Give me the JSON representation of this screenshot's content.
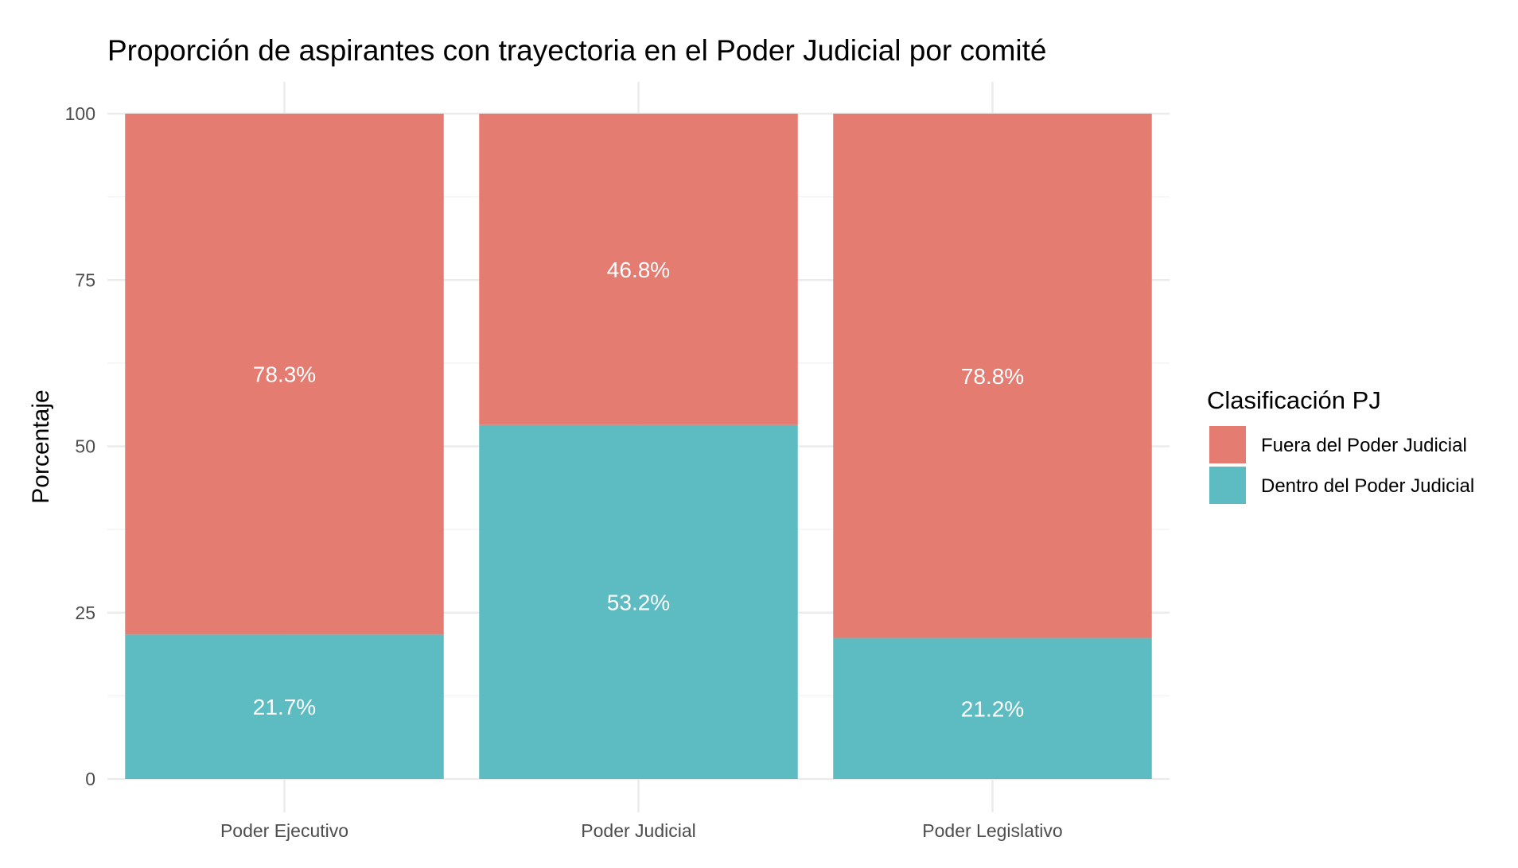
{
  "chart_data": {
    "type": "bar",
    "stacked": true,
    "title": "Proporción de aspirantes con trayectoria en el Poder Judicial por comité",
    "xlabel": "",
    "ylabel": "Porcentaje",
    "ylim": [
      0,
      100
    ],
    "yticks": [
      0,
      25,
      50,
      75,
      100
    ],
    "grid": true,
    "categories": [
      "Poder Ejecutivo",
      "Poder Judicial",
      "Poder Legislativo"
    ],
    "series": [
      {
        "name": "Dentro del Poder Judicial",
        "color": "#5cbcc2",
        "values": [
          21.7,
          53.2,
          21.2
        ],
        "labels": [
          "21.7%",
          "53.2%",
          "21.2%"
        ]
      },
      {
        "name": "Fuera del Poder Judicial",
        "color": "#e47c72",
        "values": [
          78.3,
          46.8,
          78.8
        ],
        "labels": [
          "78.3%",
          "46.8%",
          "78.8%"
        ]
      }
    ],
    "legend": {
      "title": "Clasificación PJ",
      "position": "right",
      "order": [
        "Fuera del Poder Judicial",
        "Dentro del Poder Judicial"
      ]
    }
  }
}
